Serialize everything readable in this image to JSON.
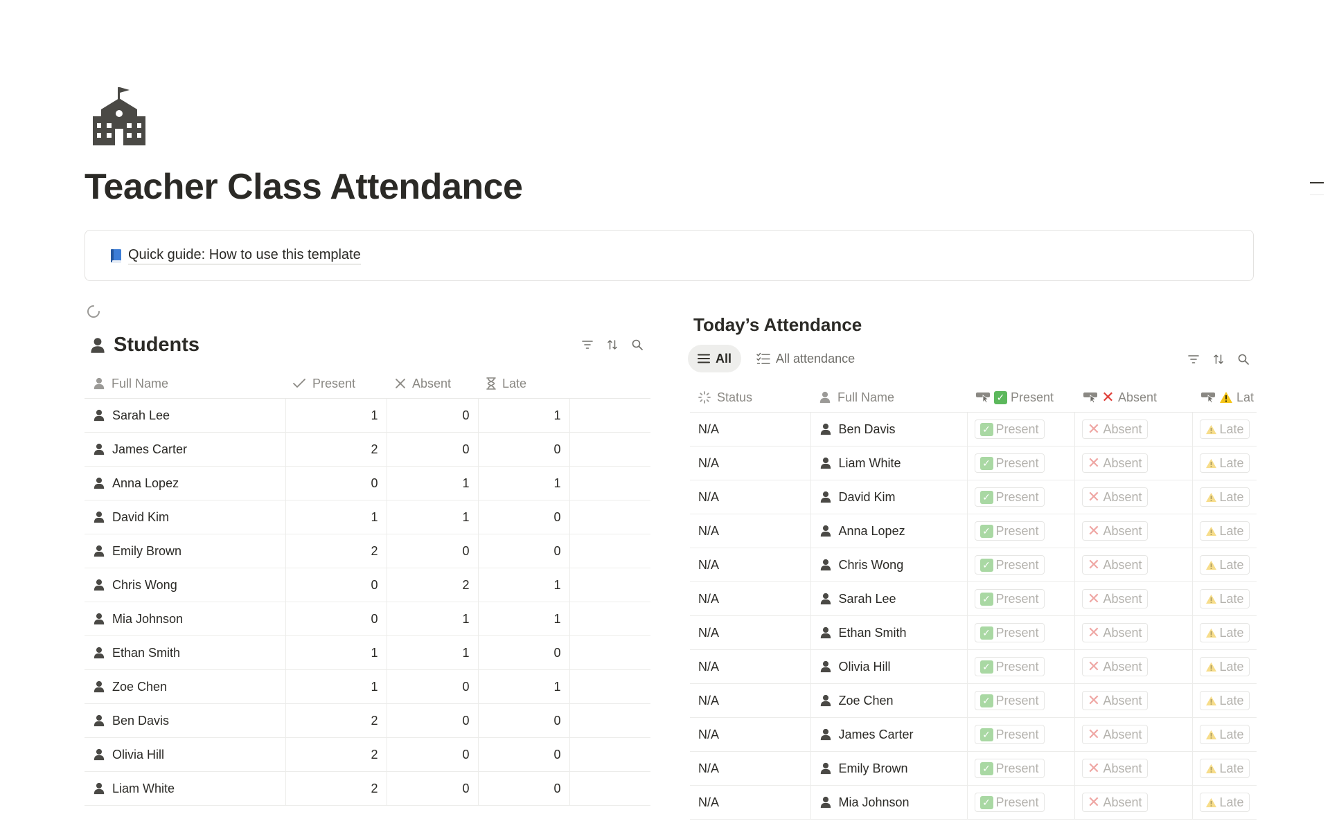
{
  "page": {
    "icon": "school-building-icon",
    "title": "Teacher Class Attendance"
  },
  "callout": {
    "icon": "blue-book-icon",
    "link_text": "Quick guide: How to use this template"
  },
  "students": {
    "title": "Students",
    "icon": "person-icon",
    "columns": [
      "Full Name",
      "Present",
      "Absent",
      "Late"
    ],
    "rows": [
      {
        "name": "Sarah Lee",
        "present": "1",
        "absent": "0",
        "late": "1"
      },
      {
        "name": "James Carter",
        "present": "2",
        "absent": "0",
        "late": "0"
      },
      {
        "name": "Anna Lopez",
        "present": "0",
        "absent": "1",
        "late": "1"
      },
      {
        "name": "David Kim",
        "present": "1",
        "absent": "1",
        "late": "0"
      },
      {
        "name": "Emily Brown",
        "present": "2",
        "absent": "0",
        "late": "0"
      },
      {
        "name": "Chris Wong",
        "present": "0",
        "absent": "2",
        "late": "1"
      },
      {
        "name": "Mia Johnson",
        "present": "0",
        "absent": "1",
        "late": "1"
      },
      {
        "name": "Ethan Smith",
        "present": "1",
        "absent": "1",
        "late": "0"
      },
      {
        "name": "Zoe Chen",
        "present": "1",
        "absent": "0",
        "late": "1"
      },
      {
        "name": "Ben Davis",
        "present": "2",
        "absent": "0",
        "late": "0"
      },
      {
        "name": "Olivia Hill",
        "present": "2",
        "absent": "0",
        "late": "0"
      },
      {
        "name": "Liam White",
        "present": "2",
        "absent": "0",
        "late": "0"
      }
    ]
  },
  "attendance": {
    "title": "Today’s Attendance",
    "tabs": [
      {
        "label": "All",
        "icon": "list-icon",
        "active": true
      },
      {
        "label": "All attendance",
        "icon": "checklist-icon",
        "active": false
      }
    ],
    "columns": {
      "status": "Status",
      "full_name": "Full Name",
      "present": "Present",
      "absent": "Absent",
      "late": "Lat"
    },
    "button_labels": {
      "present": "Present",
      "absent": "Absent",
      "late": "Late"
    },
    "rows": [
      {
        "status": "N/A",
        "name": "Ben Davis"
      },
      {
        "status": "N/A",
        "name": "Liam White"
      },
      {
        "status": "N/A",
        "name": "David Kim"
      },
      {
        "status": "N/A",
        "name": "Anna Lopez"
      },
      {
        "status": "N/A",
        "name": "Chris Wong"
      },
      {
        "status": "N/A",
        "name": "Sarah Lee"
      },
      {
        "status": "N/A",
        "name": "Ethan Smith"
      },
      {
        "status": "N/A",
        "name": "Olivia Hill"
      },
      {
        "status": "N/A",
        "name": "Zoe Chen"
      },
      {
        "status": "N/A",
        "name": "James Carter"
      },
      {
        "status": "N/A",
        "name": "Emily Brown"
      },
      {
        "status": "N/A",
        "name": "Mia Johnson"
      }
    ]
  },
  "colors": {
    "text": "#37352f",
    "muted": "#8a8883",
    "border": "#e9e9e7",
    "check_green": "#5cb85c",
    "cross_red": "#e0403a",
    "warning_yellow": "#f5c518"
  }
}
